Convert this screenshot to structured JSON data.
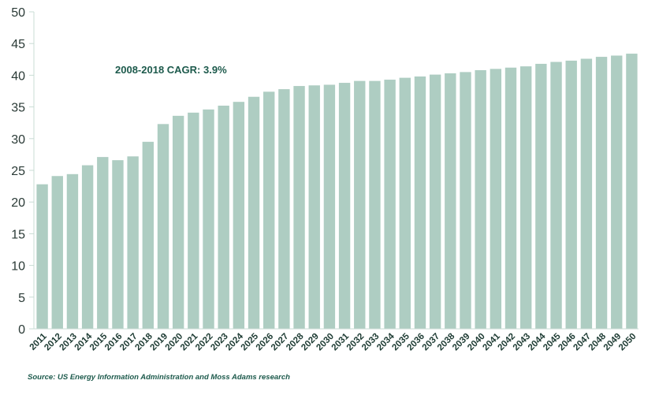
{
  "chart_data": {
    "type": "bar",
    "categories": [
      "2011",
      "2012",
      "2013",
      "2014",
      "2015",
      "2016",
      "2017",
      "2018",
      "2019",
      "2020",
      "2021",
      "2022",
      "2023",
      "2024",
      "2025",
      "2026",
      "2027",
      "2028",
      "2029",
      "2030",
      "2031",
      "2032",
      "2033",
      "2034",
      "2035",
      "2036",
      "2037",
      "2038",
      "2039",
      "2040",
      "2041",
      "2042",
      "2043",
      "2044",
      "2045",
      "2046",
      "2047",
      "2048",
      "2049",
      "2050"
    ],
    "values": [
      22.8,
      24.1,
      24.4,
      25.8,
      27.1,
      26.6,
      27.2,
      29.5,
      32.3,
      33.6,
      34.1,
      34.6,
      35.2,
      35.8,
      36.6,
      37.4,
      37.8,
      38.3,
      38.4,
      38.5,
      38.8,
      39.1,
      39.1,
      39.3,
      39.6,
      39.8,
      40.1,
      40.3,
      40.5,
      40.8,
      41.0,
      41.2,
      41.4,
      41.8,
      42.1,
      42.3,
      42.6,
      42.9,
      43.1,
      43.4
    ],
    "ylim": [
      0,
      50
    ],
    "yticks": [
      0,
      5,
      10,
      15,
      20,
      25,
      30,
      35,
      40,
      45,
      50
    ],
    "bar_color": "#aecdc2",
    "grid": false,
    "title": "",
    "xlabel": "",
    "ylabel": ""
  },
  "annotation": "2008-2018 CAGR: 3.9%",
  "source": "Source: US Energy Information Administration and Moss Adams research",
  "colors": {
    "axis": "#c9dcd5",
    "text_dark": "#1d3b33",
    "accent": "#1d5a4c"
  }
}
